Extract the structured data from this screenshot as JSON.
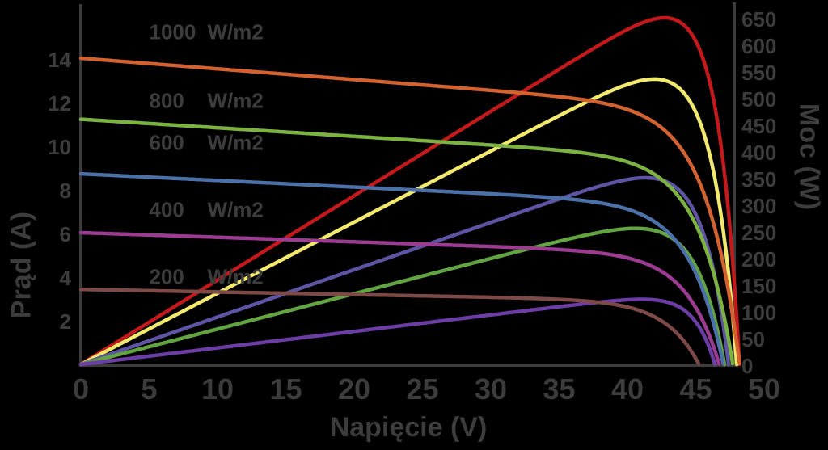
{
  "figure": {
    "background": "#000000",
    "text_color": "#3C3C3C",
    "axis_color": "#3C3C3C"
  },
  "axes": {
    "x": {
      "title": "Napięcie (V)",
      "min": 0,
      "max": 50,
      "tick_step": 5,
      "tick_values": [
        0,
        5,
        10,
        15,
        20,
        25,
        30,
        35,
        40,
        45,
        50
      ],
      "tick_labels": [
        "0",
        "5",
        "10",
        "15",
        "20",
        "25",
        "30",
        "35",
        "40",
        "45",
        "50"
      ]
    },
    "y_left": {
      "title": "Prąd (A)",
      "min": 0,
      "max": 16.4,
      "tick_values": [
        2,
        4,
        6,
        8,
        10,
        12,
        14
      ],
      "tick_labels": [
        "2",
        "4",
        "6",
        "8",
        "10",
        "12",
        "14"
      ]
    },
    "y_right": {
      "title": "Moc (W)",
      "min": 0,
      "max": 680,
      "tick_values": [
        0,
        50,
        100,
        150,
        200,
        250,
        300,
        350,
        400,
        450,
        500,
        550,
        600,
        650
      ],
      "tick_labels": [
        "0",
        "50",
        "100",
        "150",
        "200",
        "250",
        "300",
        "350",
        "400",
        "450",
        "500",
        "550",
        "600",
        "650"
      ]
    }
  },
  "chart_data": {
    "type": "line",
    "title": "",
    "xlabel": "Napięcie (V)",
    "ylabel_left": "Prąd (A)",
    "ylabel_right": "Moc (W)",
    "xlim": [
      0,
      50
    ],
    "ylim_left": [
      0,
      16.4
    ],
    "ylim_right": [
      0,
      680
    ],
    "grid": false,
    "legend_position": "inline-labels",
    "series": [
      {
        "irradiance_wm2": 1000,
        "label_value": "1000",
        "label_unit": "W/m2",
        "label_at": {
          "volts": 5.0,
          "amps": 15.2
        },
        "iv": {
          "isc_a": 14.0,
          "voc_v": 48.2,
          "color": "#D2622F"
        },
        "pv": {
          "pmax_w": 650,
          "vmp_v": 43.0,
          "voc_v": 48.2,
          "color": "#C2191C"
        }
      },
      {
        "irradiance_wm2": 800,
        "label_value": "800",
        "label_unit": "W/m2",
        "label_at": {
          "volts": 5.0,
          "amps": 12.05
        },
        "iv": {
          "isc_a": 11.2,
          "voc_v": 47.7,
          "color": "#7CB242"
        },
        "pv": {
          "pmax_w": 535,
          "vmp_v": 42.0,
          "voc_v": 48.0,
          "color": "#F2E96E"
        }
      },
      {
        "irradiance_wm2": 600,
        "label_value": "600",
        "label_unit": "W/m2",
        "label_at": {
          "volts": 5.0,
          "amps": 10.1
        },
        "iv": {
          "isc_a": 8.7,
          "voc_v": 47.0,
          "color": "#4C70A8"
        },
        "pv": {
          "pmax_w": 350,
          "vmp_v": 41.3,
          "voc_v": 47.4,
          "color": "#5D55A4"
        }
      },
      {
        "irradiance_wm2": 400,
        "label_value": "400",
        "label_unit": "W/m2",
        "label_at": {
          "volts": 5.0,
          "amps": 7.05
        },
        "iv": {
          "isc_a": 6.0,
          "voc_v": 46.7,
          "color": "#9C3B92"
        },
        "pv": {
          "pmax_w": 255,
          "vmp_v": 40.3,
          "voc_v": 47.1,
          "color": "#62A342"
        }
      },
      {
        "irradiance_wm2": 200,
        "label_value": "200",
        "label_unit": "W/m2",
        "label_at": {
          "volts": 5.0,
          "amps": 3.95
        },
        "iv": {
          "isc_a": 3.4,
          "voc_v": 45.2,
          "color": "#7D4A47"
        },
        "pv": {
          "pmax_w": 122,
          "vmp_v": 41.3,
          "voc_v": 46.4,
          "color": "#6C3DA4"
        }
      }
    ]
  }
}
